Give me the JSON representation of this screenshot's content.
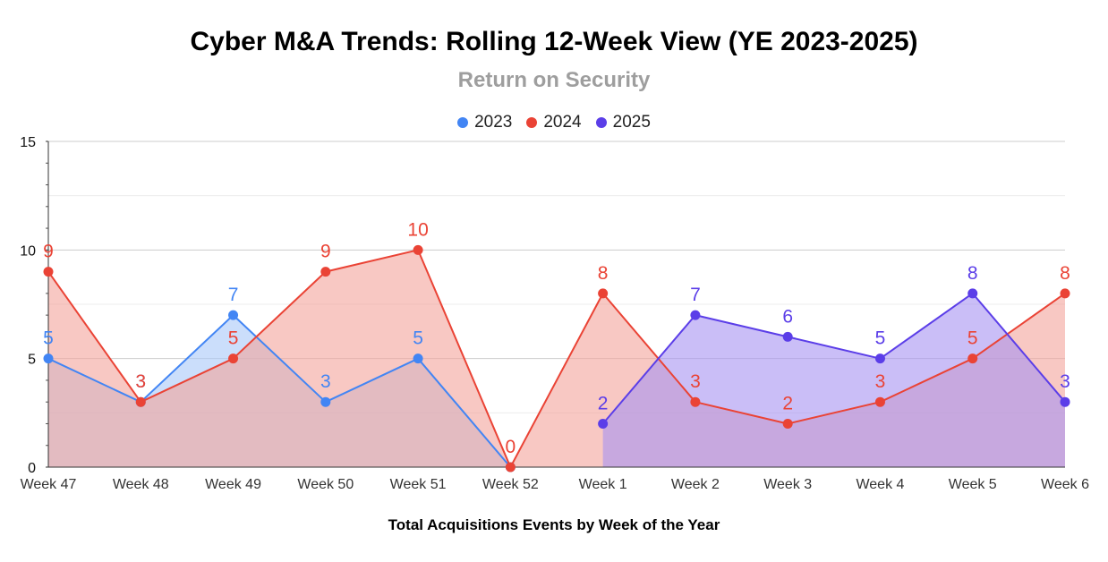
{
  "chart_data": {
    "type": "area",
    "title": "Cyber M&A Trends: Rolling 12-Week View (YE 2023-2025)",
    "subtitle": "Return on Security",
    "xlabel": "Total Acquisitions Events by Week of the Year",
    "ylabel": "",
    "ylim": [
      0,
      15
    ],
    "yticks": [
      "0",
      "5",
      "10",
      "15"
    ],
    "legend_position": "top-center",
    "categories": [
      "Week 47",
      "Week 48",
      "Week 49",
      "Week 50",
      "Week 51",
      "Week 52",
      "Week 1",
      "Week 2",
      "Week 3",
      "Week 4",
      "Week 5",
      "Week 6"
    ],
    "series": [
      {
        "name": "2023",
        "color": "#4285f4",
        "fill": "#a9c8f8",
        "values": [
          5,
          3,
          7,
          3,
          5,
          0,
          null,
          null,
          null,
          null,
          null,
          null
        ],
        "labels": [
          "5",
          "3",
          "7",
          "3",
          "5",
          "",
          "",
          "",
          "",
          "",
          "",
          ""
        ]
      },
      {
        "name": "2024",
        "color": "#ea4335",
        "fill": "#f4a39b",
        "values": [
          9,
          3,
          5,
          9,
          10,
          0,
          8,
          3,
          2,
          3,
          5,
          8
        ],
        "labels": [
          "9",
          "3",
          "5",
          "9",
          "10",
          "0",
          "8",
          "3",
          "2",
          "3",
          "5",
          "8"
        ]
      },
      {
        "name": "2025",
        "color": "#5b3ee8",
        "fill": "#a693f2",
        "values": [
          null,
          null,
          null,
          null,
          null,
          null,
          2,
          7,
          6,
          5,
          8,
          3
        ],
        "labels": [
          "",
          "",
          "",
          "",
          "",
          "",
          "2",
          "7",
          "6",
          "5",
          "8",
          "3"
        ]
      }
    ]
  }
}
